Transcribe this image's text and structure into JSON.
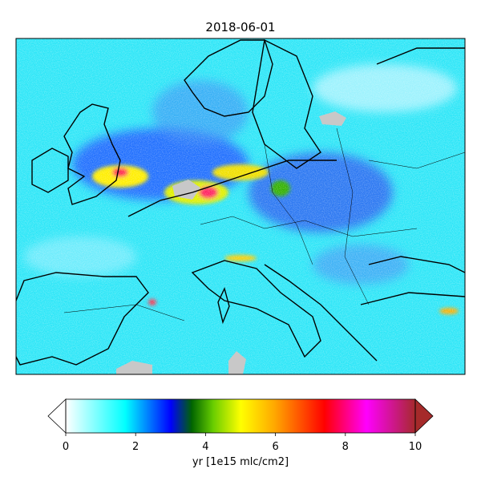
{
  "title": "2018-06-01",
  "colorbar": {
    "label": "yr [1e15 mlc/cm2]",
    "lim": [
      0,
      10
    ],
    "ticks": [
      0,
      2,
      4,
      6,
      8,
      10
    ],
    "colormap": [
      {
        "value": 0,
        "color": "#ffffff"
      },
      {
        "value": 1.7,
        "color": "#00ffff"
      },
      {
        "value": 3,
        "color": "#0000ff"
      },
      {
        "value": 3.6,
        "color": "#006400"
      },
      {
        "value": 4.2,
        "color": "#66cc00"
      },
      {
        "value": 5,
        "color": "#ffff00"
      },
      {
        "value": 6,
        "color": "#ffa500"
      },
      {
        "value": 7.4,
        "color": "#ff0000"
      },
      {
        "value": 8.6,
        "color": "#ff00ff"
      },
      {
        "value": 10,
        "color": "#a52a2a"
      }
    ]
  }
}
